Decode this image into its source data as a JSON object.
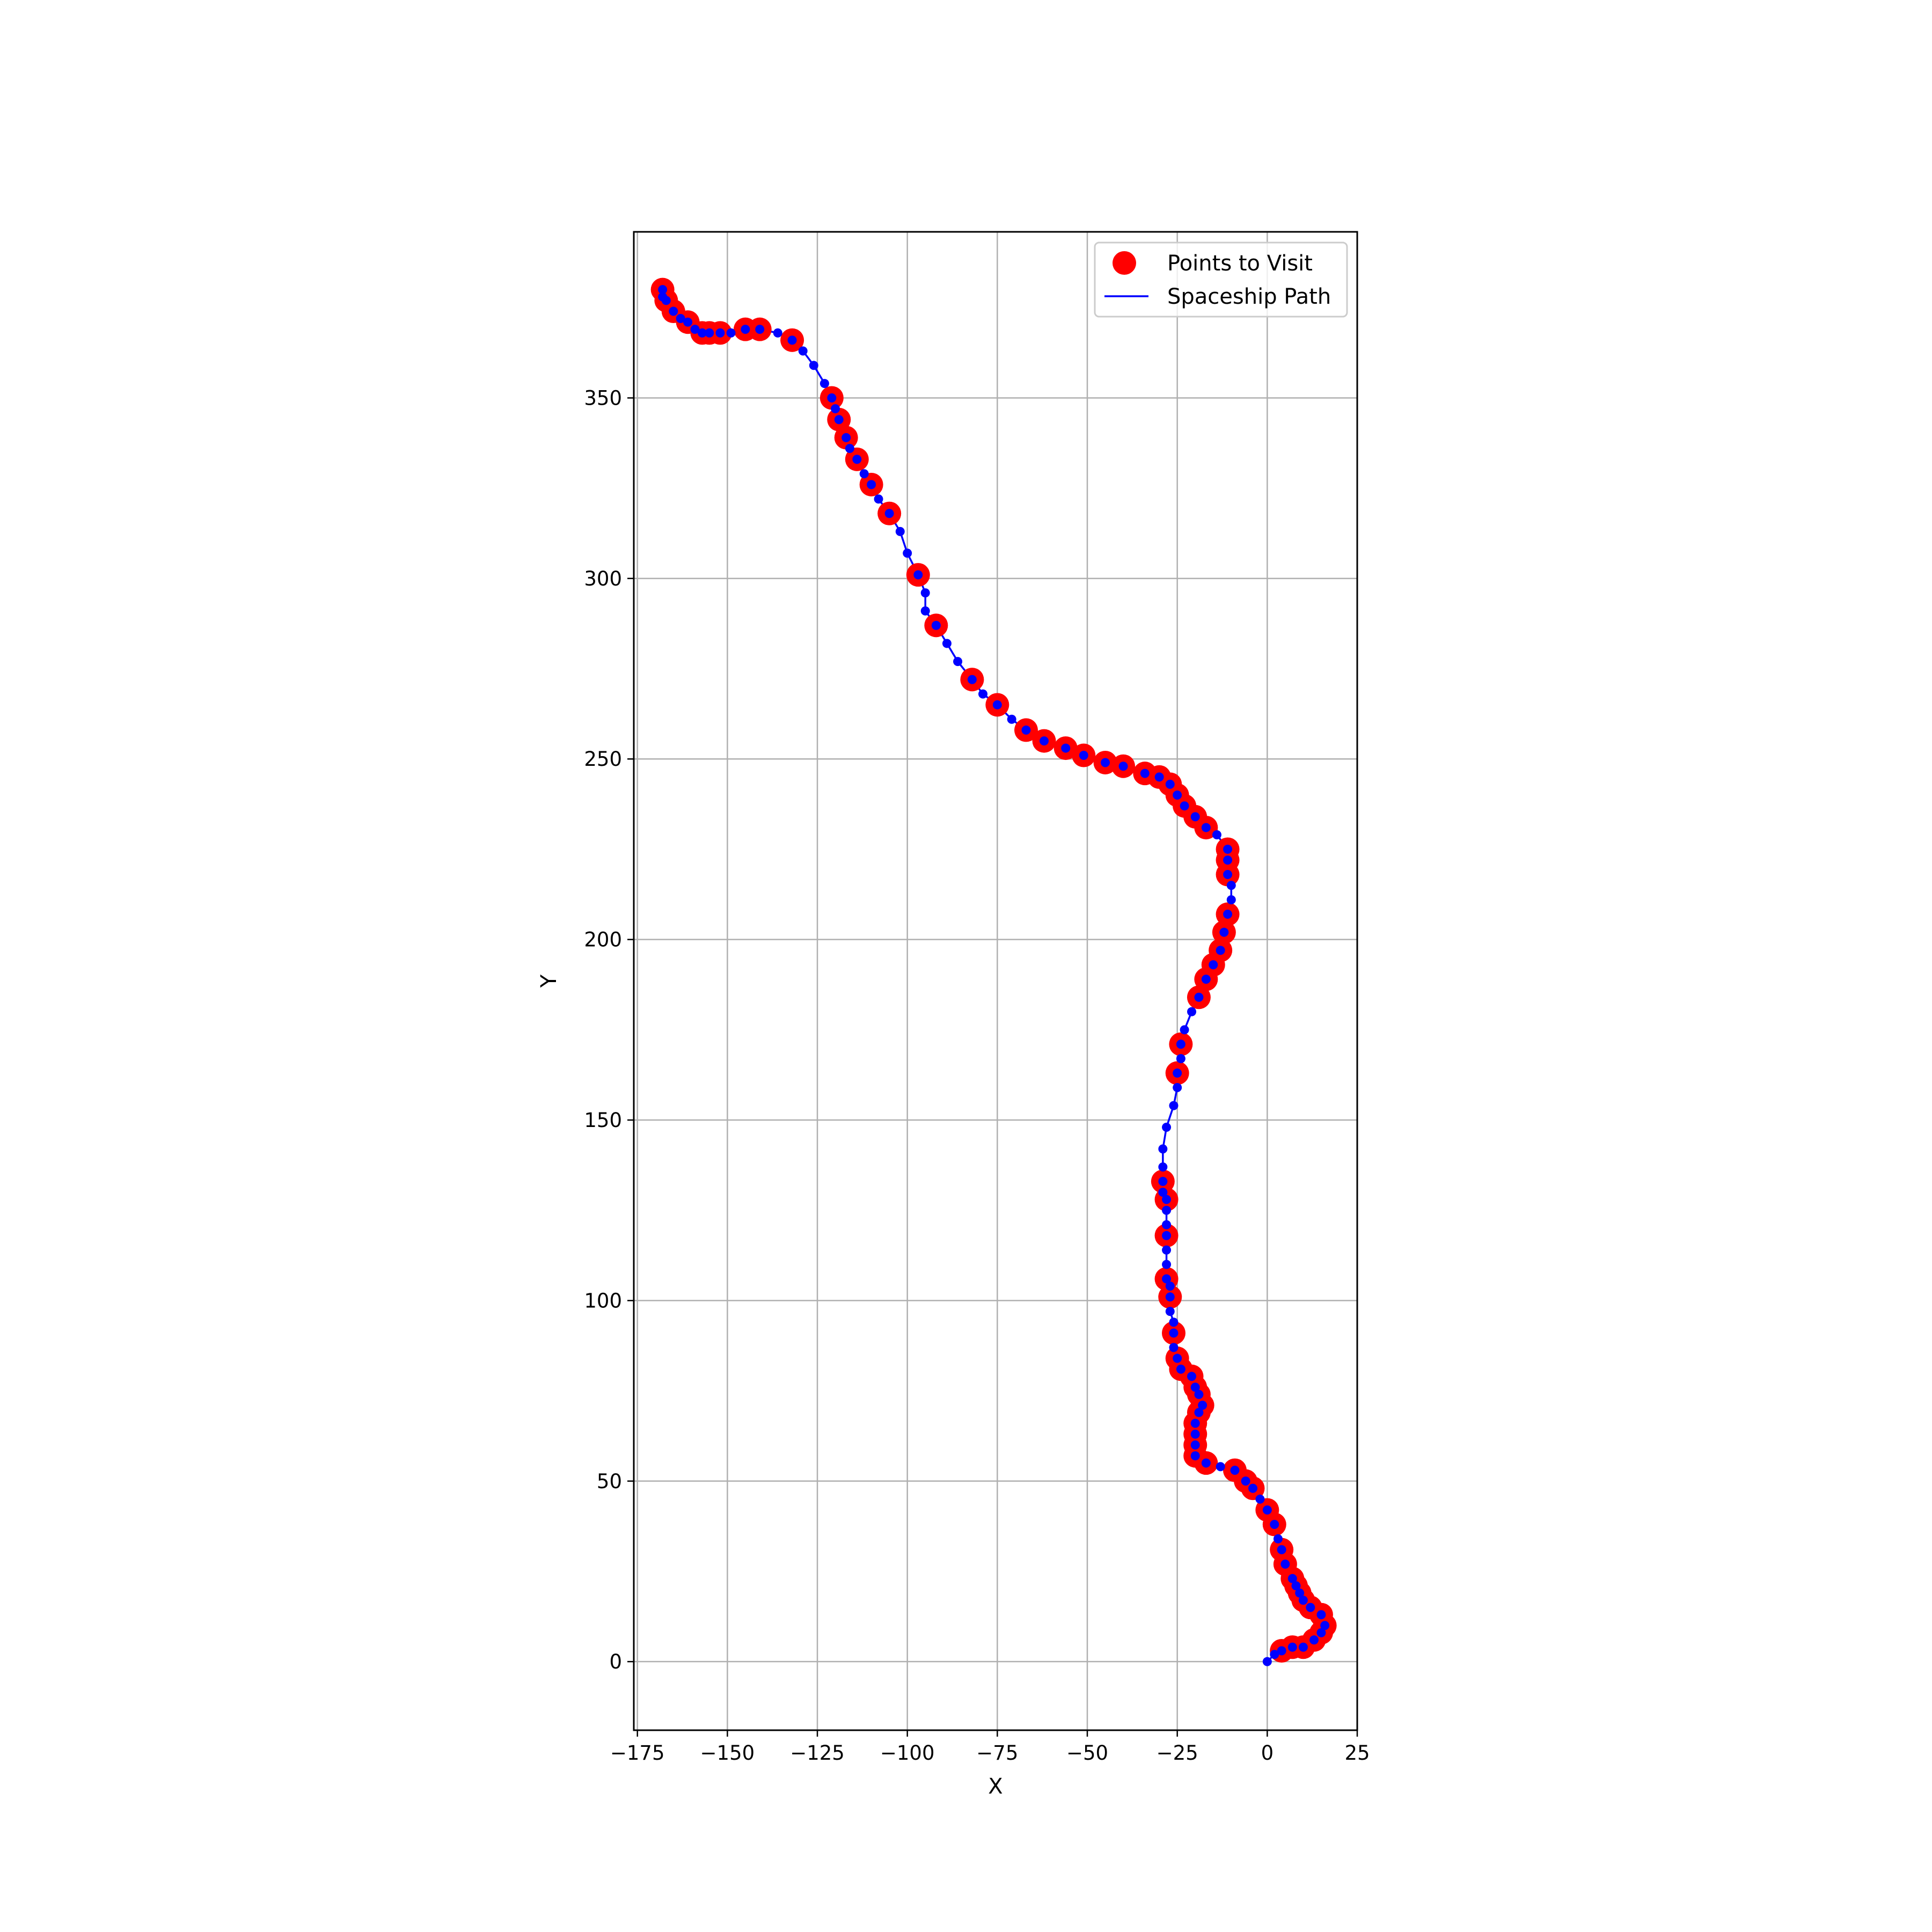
{
  "chart_data": {
    "type": "scatter",
    "title": "",
    "xlabel": "X",
    "ylabel": "Y",
    "xlim": [
      -176,
      25
    ],
    "ylim": [
      -19,
      396
    ],
    "xticks": [
      -175,
      -150,
      -125,
      -100,
      -75,
      -50,
      -25,
      0,
      25
    ],
    "xtick_labels": [
      "−175",
      "−150",
      "−125",
      "−100",
      "−75",
      "−50",
      "−25",
      "0",
      "25"
    ],
    "yticks": [
      0,
      50,
      100,
      150,
      200,
      250,
      300,
      350
    ],
    "ytick_labels": [
      "0",
      "50",
      "100",
      "150",
      "200",
      "250",
      "300",
      "350"
    ],
    "grid": true,
    "legend_position": "upper-right",
    "colors": {
      "points": "#ff0000",
      "path": "#0000ff",
      "grid": "#b0b0b0",
      "legend_border": "#cccccc"
    },
    "series": [
      {
        "name": "Points to Visit",
        "kind": "points",
        "points": [
          [
            4,
            3
          ],
          [
            7,
            4
          ],
          [
            10,
            4
          ],
          [
            13,
            6
          ],
          [
            15,
            8
          ],
          [
            16,
            10
          ],
          [
            15,
            13
          ],
          [
            12,
            15
          ],
          [
            10,
            17
          ],
          [
            9,
            19
          ],
          [
            8,
            21
          ],
          [
            7,
            23
          ],
          [
            5,
            27
          ],
          [
            4,
            31
          ],
          [
            2,
            38
          ],
          [
            0,
            42
          ],
          [
            -4,
            48
          ],
          [
            -6,
            50
          ],
          [
            -9,
            53
          ],
          [
            -17,
            55
          ],
          [
            -20,
            57
          ],
          [
            -20,
            60
          ],
          [
            -20,
            63
          ],
          [
            -20,
            66
          ],
          [
            -19,
            69
          ],
          [
            -18,
            71
          ],
          [
            -19,
            74
          ],
          [
            -20,
            76
          ],
          [
            -21,
            79
          ],
          [
            -24,
            81
          ],
          [
            -25,
            84
          ],
          [
            -26,
            91
          ],
          [
            -27,
            101
          ],
          [
            -28,
            106
          ],
          [
            -28,
            118
          ],
          [
            -28,
            128
          ],
          [
            -29,
            133
          ],
          [
            -25,
            163
          ],
          [
            -24,
            171
          ],
          [
            -19,
            184
          ],
          [
            -17,
            189
          ],
          [
            -15,
            193
          ],
          [
            -13,
            197
          ],
          [
            -12,
            202
          ],
          [
            -11,
            207
          ],
          [
            -11,
            218
          ],
          [
            -11,
            222
          ],
          [
            -11,
            225
          ],
          [
            -17,
            231
          ],
          [
            -20,
            234
          ],
          [
            -23,
            237
          ],
          [
            -25,
            240
          ],
          [
            -27,
            243
          ],
          [
            -30,
            245
          ],
          [
            -34,
            246
          ],
          [
            -40,
            248
          ],
          [
            -45,
            249
          ],
          [
            -51,
            251
          ],
          [
            -56,
            253
          ],
          [
            -62,
            255
          ],
          [
            -67,
            258
          ],
          [
            -75,
            265
          ],
          [
            -82,
            272
          ],
          [
            -92,
            287
          ],
          [
            -97,
            301
          ],
          [
            -105,
            318
          ],
          [
            -110,
            326
          ],
          [
            -114,
            333
          ],
          [
            -117,
            339
          ],
          [
            -119,
            344
          ],
          [
            -121,
            350
          ],
          [
            -132,
            366
          ],
          [
            -141,
            369
          ],
          [
            -145,
            369
          ],
          [
            -152,
            368
          ],
          [
            -155,
            368
          ],
          [
            -157,
            368
          ],
          [
            -161,
            371
          ],
          [
            -165,
            374
          ],
          [
            -167,
            377
          ],
          [
            -168,
            380
          ]
        ]
      },
      {
        "name": "Spaceship Path",
        "kind": "line-with-dots",
        "points": [
          [
            0,
            0
          ],
          [
            2,
            2
          ],
          [
            4,
            3
          ],
          [
            7,
            4
          ],
          [
            10,
            4
          ],
          [
            13,
            6
          ],
          [
            15,
            8
          ],
          [
            16,
            10
          ],
          [
            15,
            13
          ],
          [
            12,
            15
          ],
          [
            10,
            17
          ],
          [
            9,
            19
          ],
          [
            8,
            21
          ],
          [
            7,
            23
          ],
          [
            5,
            27
          ],
          [
            4,
            31
          ],
          [
            3,
            34
          ],
          [
            2,
            38
          ],
          [
            0,
            42
          ],
          [
            -2,
            45
          ],
          [
            -4,
            48
          ],
          [
            -6,
            50
          ],
          [
            -9,
            53
          ],
          [
            -13,
            54
          ],
          [
            -17,
            55
          ],
          [
            -20,
            57
          ],
          [
            -20,
            60
          ],
          [
            -20,
            63
          ],
          [
            -20,
            66
          ],
          [
            -19,
            69
          ],
          [
            -18,
            71
          ],
          [
            -19,
            74
          ],
          [
            -20,
            76
          ],
          [
            -21,
            79
          ],
          [
            -24,
            81
          ],
          [
            -25,
            84
          ],
          [
            -26,
            87
          ],
          [
            -26,
            91
          ],
          [
            -26,
            94
          ],
          [
            -27,
            97
          ],
          [
            -27,
            101
          ],
          [
            -27,
            104
          ],
          [
            -28,
            106
          ],
          [
            -28,
            110
          ],
          [
            -28,
            114
          ],
          [
            -28,
            118
          ],
          [
            -28,
            121
          ],
          [
            -28,
            125
          ],
          [
            -28,
            128
          ],
          [
            -29,
            130
          ],
          [
            -29,
            133
          ],
          [
            -29,
            137
          ],
          [
            -29,
            142
          ],
          [
            -28,
            148
          ],
          [
            -26,
            154
          ],
          [
            -25,
            159
          ],
          [
            -25,
            163
          ],
          [
            -24,
            167
          ],
          [
            -24,
            171
          ],
          [
            -23,
            175
          ],
          [
            -21,
            180
          ],
          [
            -19,
            184
          ],
          [
            -17,
            189
          ],
          [
            -15,
            193
          ],
          [
            -13,
            197
          ],
          [
            -12,
            202
          ],
          [
            -11,
            207
          ],
          [
            -10,
            211
          ],
          [
            -10,
            215
          ],
          [
            -11,
            218
          ],
          [
            -11,
            222
          ],
          [
            -11,
            225
          ],
          [
            -14,
            229
          ],
          [
            -17,
            231
          ],
          [
            -20,
            234
          ],
          [
            -23,
            237
          ],
          [
            -25,
            240
          ],
          [
            -27,
            243
          ],
          [
            -30,
            245
          ],
          [
            -34,
            246
          ],
          [
            -40,
            248
          ],
          [
            -45,
            249
          ],
          [
            -51,
            251
          ],
          [
            -56,
            253
          ],
          [
            -62,
            255
          ],
          [
            -67,
            258
          ],
          [
            -71,
            261
          ],
          [
            -75,
            265
          ],
          [
            -79,
            268
          ],
          [
            -82,
            272
          ],
          [
            -86,
            277
          ],
          [
            -89,
            282
          ],
          [
            -92,
            287
          ],
          [
            -95,
            291
          ],
          [
            -95,
            296
          ],
          [
            -97,
            301
          ],
          [
            -100,
            307
          ],
          [
            -102,
            313
          ],
          [
            -105,
            318
          ],
          [
            -108,
            322
          ],
          [
            -110,
            326
          ],
          [
            -112,
            329
          ],
          [
            -114,
            333
          ],
          [
            -116,
            336
          ],
          [
            -117,
            339
          ],
          [
            -119,
            344
          ],
          [
            -120,
            347
          ],
          [
            -121,
            350
          ],
          [
            -123,
            354
          ],
          [
            -126,
            359
          ],
          [
            -129,
            363
          ],
          [
            -132,
            366
          ],
          [
            -136,
            368
          ],
          [
            -141,
            369
          ],
          [
            -145,
            369
          ],
          [
            -149,
            368
          ],
          [
            -152,
            368
          ],
          [
            -155,
            368
          ],
          [
            -157,
            368
          ],
          [
            -159,
            369
          ],
          [
            -161,
            371
          ],
          [
            -163,
            372
          ],
          [
            -165,
            374
          ],
          [
            -167,
            377
          ],
          [
            -168,
            378
          ],
          [
            -168,
            380
          ]
        ]
      }
    ]
  }
}
